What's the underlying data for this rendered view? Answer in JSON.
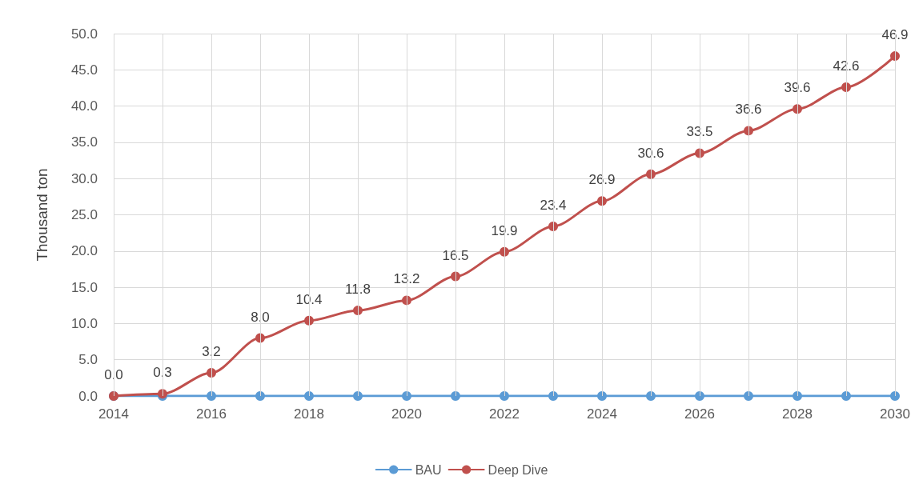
{
  "chart_data": {
    "type": "line",
    "ylabel": "Thousand ton",
    "x": [
      2014,
      2015,
      2016,
      2017,
      2018,
      2019,
      2020,
      2021,
      2022,
      2023,
      2024,
      2025,
      2026,
      2027,
      2028,
      2029,
      2030
    ],
    "series": [
      {
        "name": "BAU",
        "color": "#5b9bd5",
        "values": [
          0,
          0,
          0,
          0,
          0,
          0,
          0,
          0,
          0,
          0,
          0,
          0,
          0,
          0,
          0,
          0,
          0
        ]
      },
      {
        "name": "Deep Dive",
        "color": "#c0504d",
        "values": [
          0.0,
          0.3,
          3.2,
          8.0,
          10.4,
          11.8,
          13.2,
          16.5,
          19.9,
          23.4,
          26.9,
          30.6,
          33.5,
          36.6,
          39.6,
          42.6,
          46.9
        ],
        "value_labels": [
          "0.0",
          "0.3",
          "3.2",
          "8.0",
          "10.4",
          "11.8",
          "13.2",
          "16.5",
          "19.9",
          "23.4",
          "26.9",
          "30.6",
          "33.5",
          "36.6",
          "39.6",
          "42.6",
          "46.9"
        ]
      }
    ],
    "xlim": [
      2014,
      2030
    ],
    "xticks": [
      2014,
      {
        "value": 2015,
        "label": null
      },
      2016,
      {
        "value": 2017,
        "label": null
      },
      2018,
      {
        "value": 2019,
        "label": null
      },
      2020,
      {
        "value": 2021,
        "label": null
      },
      2022,
      {
        "value": 2023,
        "label": null
      },
      2024,
      {
        "value": 2025,
        "label": null
      },
      2026,
      {
        "value": 2027,
        "label": null
      },
      2028,
      {
        "value": 2029,
        "label": null
      },
      2030
    ],
    "ylim": [
      0,
      50
    ],
    "yticks": [
      {
        "value": 0,
        "label": "0.0"
      },
      {
        "value": 5,
        "label": "5.0"
      },
      {
        "value": 10,
        "label": "10.0"
      },
      {
        "value": 15,
        "label": "15.0"
      },
      {
        "value": 20,
        "label": "20.0"
      },
      {
        "value": 25,
        "label": "25.0"
      },
      {
        "value": 30,
        "label": "30.0"
      },
      {
        "value": 35,
        "label": "35.0"
      },
      {
        "value": 40,
        "label": "40.0"
      },
      {
        "value": 45,
        "label": "45.0"
      },
      {
        "value": 50,
        "label": "50.0"
      }
    ],
    "grid": true,
    "legend": "bottom",
    "marker": "circle",
    "line_style": "solid"
  }
}
